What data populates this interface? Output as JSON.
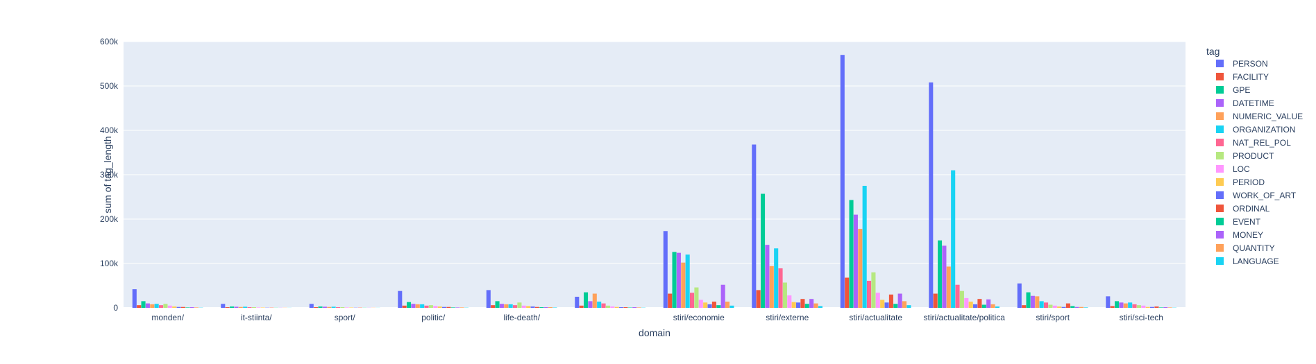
{
  "chart_data": {
    "type": "bar",
    "barmode": "group",
    "xlabel": "domain",
    "ylabel": "sum of tag_length",
    "ylim": [
      0,
      600000
    ],
    "yticks": [
      0,
      100000,
      200000,
      300000,
      400000,
      500000,
      600000
    ],
    "ytick_labels": [
      "0",
      "100k",
      "200k",
      "300k",
      "400k",
      "500k",
      "600k"
    ],
    "grid": true,
    "legend_title": "tag",
    "legend_position": "right",
    "categories": [
      "monden/",
      "it-stiinta/",
      "sport/",
      "politic/",
      "life-death/",
      "",
      "stiri/economie",
      "stiri/externe",
      "stiri/actualitate",
      "stiri/actualitate/politica",
      "stiri/sport",
      "stiri/sci-tech"
    ],
    "series": [
      {
        "name": "PERSON",
        "color": "#636efa",
        "values": [
          42000,
          9000,
          9000,
          38000,
          40000,
          25000,
          173000,
          368000,
          570000,
          508000,
          55000,
          26000
        ]
      },
      {
        "name": "FACILITY",
        "color": "#EF553B",
        "values": [
          6000,
          1500,
          1500,
          5000,
          6000,
          5000,
          32000,
          40000,
          68000,
          32000,
          6000,
          4000
        ]
      },
      {
        "name": "GPE",
        "color": "#00cc96",
        "values": [
          15000,
          3000,
          3000,
          13000,
          15000,
          35000,
          126000,
          257000,
          243000,
          152000,
          35000,
          15000
        ]
      },
      {
        "name": "DATETIME",
        "color": "#ab63fa",
        "values": [
          10000,
          2500,
          2500,
          9000,
          9000,
          15000,
          124000,
          142000,
          210000,
          140000,
          27000,
          12000
        ]
      },
      {
        "name": "NUMERIC_VALUE",
        "color": "#FFA15A",
        "values": [
          8000,
          2000,
          2000,
          8000,
          8000,
          32000,
          102000,
          94000,
          178000,
          93000,
          26000,
          10000
        ]
      },
      {
        "name": "ORGANIZATION",
        "color": "#19d3f3",
        "values": [
          9000,
          2500,
          2500,
          8000,
          8000,
          14000,
          120000,
          134000,
          275000,
          310000,
          15000,
          12000
        ]
      },
      {
        "name": "NAT_REL_POL",
        "color": "#FF6692",
        "values": [
          6000,
          1500,
          1500,
          5000,
          6000,
          10000,
          34000,
          89000,
          61000,
          52000,
          12000,
          8000
        ]
      },
      {
        "name": "PRODUCT",
        "color": "#B6E880",
        "values": [
          9000,
          1500,
          1500,
          6000,
          12000,
          5000,
          46000,
          57000,
          80000,
          38000,
          7000,
          6000
        ]
      },
      {
        "name": "LOC",
        "color": "#FF97FF",
        "values": [
          5000,
          1000,
          1000,
          4000,
          5000,
          3000,
          18000,
          28000,
          34000,
          22000,
          5000,
          5000
        ]
      },
      {
        "name": "PERIOD",
        "color": "#FECB52",
        "values": [
          3000,
          800,
          800,
          3000,
          4000,
          2000,
          12000,
          13000,
          18000,
          14000,
          3000,
          2000
        ]
      },
      {
        "name": "WORK_OF_ART",
        "color": "#636efa",
        "values": [
          2000,
          500,
          500,
          2000,
          3000,
          1500,
          8000,
          12000,
          12000,
          8000,
          2000,
          2000
        ]
      },
      {
        "name": "ORDINAL",
        "color": "#EF553B",
        "values": [
          2000,
          500,
          500,
          2000,
          2000,
          1500,
          14000,
          20000,
          30000,
          20000,
          10000,
          3000
        ]
      },
      {
        "name": "EVENT",
        "color": "#00cc96",
        "values": [
          1000,
          300,
          300,
          1000,
          1500,
          800,
          6000,
          9000,
          9000,
          7000,
          4000,
          1000
        ]
      },
      {
        "name": "MONEY",
        "color": "#ab63fa",
        "values": [
          1500,
          300,
          300,
          1000,
          1500,
          1500,
          52000,
          20000,
          32000,
          19000,
          2000,
          1500
        ]
      },
      {
        "name": "QUANTITY",
        "color": "#FFA15A",
        "values": [
          1000,
          300,
          300,
          1000,
          1500,
          1000,
          14000,
          10000,
          15000,
          8000,
          2000,
          1000
        ]
      },
      {
        "name": "LANGUAGE",
        "color": "#19d3f3",
        "values": [
          500,
          200,
          200,
          500,
          800,
          500,
          5000,
          4000,
          6000,
          3000,
          1000,
          500
        ]
      }
    ]
  }
}
